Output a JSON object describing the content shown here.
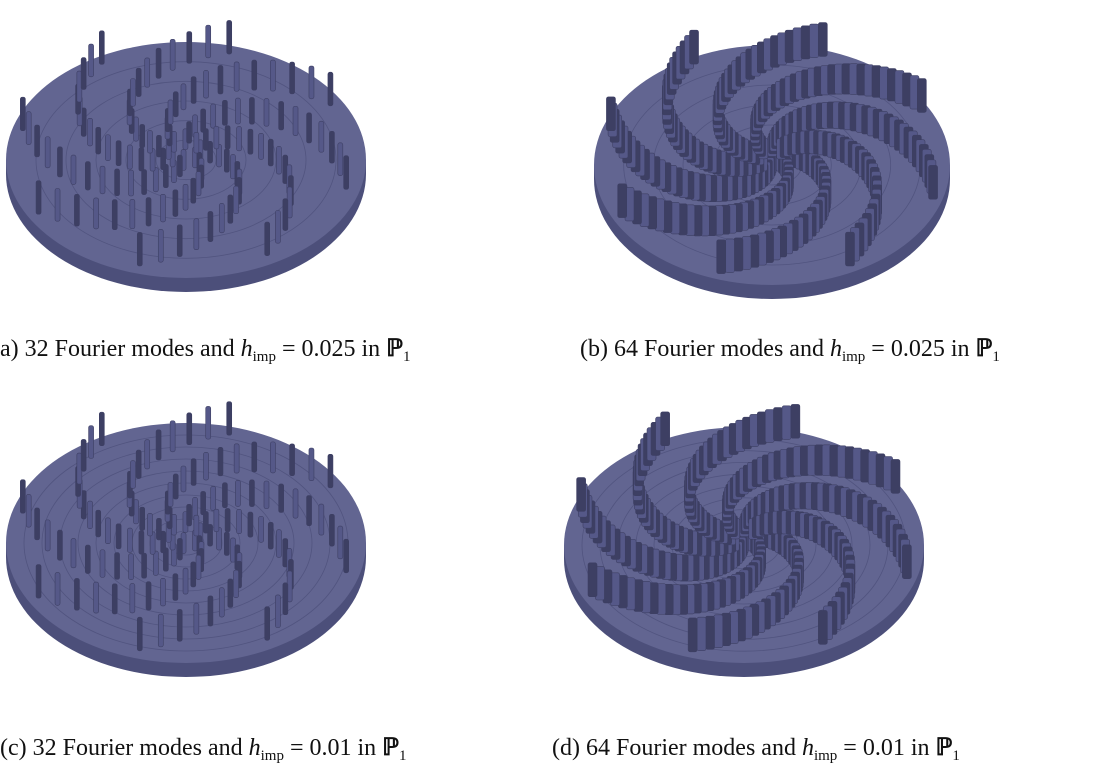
{
  "figure": {
    "panels": [
      {
        "id": "a",
        "caption_prefix": "a) 32 Fourier modes and ",
        "caption_h": "h",
        "caption_sub": "imp",
        "caption_value": " = 0.025 in ",
        "caption_space": "ℙ",
        "caption_space_sub": "1",
        "render": {
          "fourier_modes": 32,
          "h_imp": 0.025
        }
      },
      {
        "id": "b",
        "caption_prefix": "(b) 64 Fourier modes and ",
        "caption_h": "h",
        "caption_sub": "imp",
        "caption_value": " = 0.025 in ",
        "caption_space": "ℙ",
        "caption_space_sub": "1",
        "render": {
          "fourier_modes": 64,
          "h_imp": 0.025
        }
      },
      {
        "id": "c",
        "caption_prefix": "(c) 32 Fourier modes and ",
        "caption_h": "h",
        "caption_sub": "imp",
        "caption_value": " = 0.01 in ",
        "caption_space": "ℙ",
        "caption_space_sub": "1",
        "render": {
          "fourier_modes": 32,
          "h_imp": 0.01
        }
      },
      {
        "id": "d",
        "caption_prefix": "(d) 64 Fourier modes and ",
        "caption_h": "h",
        "caption_sub": "imp",
        "caption_value": " = 0.01 in ",
        "caption_space": "ℙ",
        "caption_space_sub": "1",
        "render": {
          "fourier_modes": 64,
          "h_imp": 0.01
        }
      }
    ],
    "colors": {
      "disk_top": "#626591",
      "disk_side": "#4c4f7a",
      "blade": "#555888",
      "blade_dark": "#3d3f63",
      "ring": "#4a4d77"
    }
  }
}
